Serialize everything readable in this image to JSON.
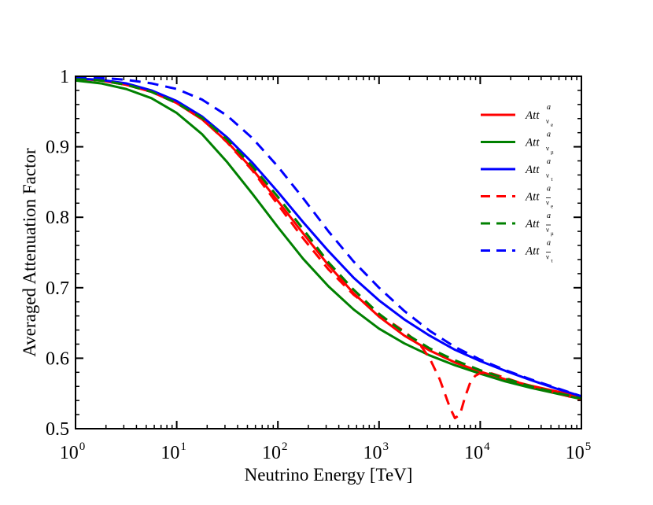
{
  "chart_data": {
    "type": "line",
    "title": "",
    "xlabel": "Neutrino Energy [TeV]",
    "ylabel": "Averaged Attenuation Factor",
    "xscale": "log",
    "xlim_log10": [
      0,
      5
    ],
    "ylim": [
      0.5,
      1.0
    ],
    "x_tick_base": "10",
    "x_tick_exponents": [
      "0",
      "1",
      "2",
      "3",
      "4",
      "5"
    ],
    "y_ticks": [
      0.5,
      0.6,
      0.7,
      0.8,
      0.9,
      1.0
    ],
    "y_tick_labels": [
      "0.5",
      "0.6",
      "0.7",
      "0.8",
      "0.9",
      "1"
    ],
    "legend_position": "top-right",
    "series": [
      {
        "name": "Att ν_e",
        "label_base": "Att",
        "label_sup": "a",
        "label_sub": "ν",
        "label_subsub": "e",
        "bar": false,
        "color": "#ff0000",
        "dashed": false,
        "log10_x": [
          0,
          0.25,
          0.5,
          0.75,
          1,
          1.25,
          1.5,
          1.75,
          2,
          2.25,
          2.5,
          2.75,
          3,
          3.25,
          3.5,
          3.75,
          4,
          4.25,
          4.5,
          4.75,
          5
        ],
        "y": [
          0.997,
          0.994,
          0.988,
          0.978,
          0.962,
          0.939,
          0.907,
          0.868,
          0.823,
          0.777,
          0.732,
          0.692,
          0.659,
          0.632,
          0.611,
          0.594,
          0.581,
          0.57,
          0.561,
          0.553,
          0.545
        ]
      },
      {
        "name": "Att ν_μ",
        "label_base": "Att",
        "label_sup": "a",
        "label_sub": "ν",
        "label_subsub": "μ",
        "bar": false,
        "color": "#008000",
        "dashed": false,
        "log10_x": [
          0,
          0.25,
          0.5,
          0.75,
          1,
          1.25,
          1.5,
          1.75,
          2,
          2.25,
          2.5,
          2.75,
          3,
          3.25,
          3.5,
          3.75,
          4,
          4.25,
          4.5,
          4.75,
          5
        ],
        "y": [
          0.994,
          0.99,
          0.982,
          0.969,
          0.948,
          0.918,
          0.878,
          0.833,
          0.786,
          0.741,
          0.702,
          0.669,
          0.642,
          0.621,
          0.604,
          0.59,
          0.578,
          0.567,
          0.558,
          0.55,
          0.542
        ]
      },
      {
        "name": "Att ν_τ",
        "label_base": "Att",
        "label_sup": "a",
        "label_sub": "ν",
        "label_subsub": "τ",
        "bar": false,
        "color": "#0000ff",
        "dashed": false,
        "log10_x": [
          0,
          0.25,
          0.5,
          0.75,
          1,
          1.25,
          1.5,
          1.75,
          2,
          2.25,
          2.5,
          2.75,
          3,
          3.25,
          3.5,
          3.75,
          4,
          4.25,
          4.5,
          4.75,
          5
        ],
        "y": [
          0.997,
          0.995,
          0.99,
          0.98,
          0.965,
          0.943,
          0.913,
          0.877,
          0.836,
          0.793,
          0.752,
          0.714,
          0.682,
          0.655,
          0.632,
          0.612,
          0.596,
          0.582,
          0.569,
          0.557,
          0.546
        ]
      },
      {
        "name": "Att ν̄_e",
        "label_base": "Att",
        "label_sup": "a",
        "label_sub": "ν",
        "label_subsub": "e",
        "bar": true,
        "color": "#ff0000",
        "dashed": true,
        "log10_x": [
          0,
          0.25,
          0.5,
          0.75,
          1,
          1.25,
          1.5,
          1.75,
          2,
          2.25,
          2.5,
          2.75,
          3,
          3.25,
          3.4,
          3.5,
          3.6,
          3.7,
          3.75,
          3.8,
          3.85,
          3.9,
          3.95,
          4,
          4.1,
          4.25,
          4.5,
          4.75,
          5
        ],
        "y": [
          0.997,
          0.994,
          0.988,
          0.978,
          0.962,
          0.94,
          0.906,
          0.866,
          0.818,
          0.77,
          0.726,
          0.69,
          0.662,
          0.638,
          0.62,
          0.6,
          0.57,
          0.53,
          0.515,
          0.52,
          0.545,
          0.565,
          0.575,
          0.579,
          0.579,
          0.572,
          0.56,
          0.551,
          0.541
        ]
      },
      {
        "name": "Att ν̄_μ",
        "label_base": "Att",
        "label_sup": "a",
        "label_sub": "ν",
        "label_subsub": "μ",
        "bar": true,
        "color": "#008000",
        "dashed": true,
        "log10_x": [
          0,
          0.25,
          0.5,
          0.75,
          1,
          1.25,
          1.5,
          1.75,
          2,
          2.25,
          2.5,
          2.75,
          3,
          3.25,
          3.5,
          3.75,
          4,
          4.25,
          4.5,
          4.75,
          5
        ],
        "y": [
          0.997,
          0.994,
          0.988,
          0.978,
          0.962,
          0.941,
          0.91,
          0.872,
          0.829,
          0.783,
          0.736,
          0.697,
          0.663,
          0.636,
          0.614,
          0.597,
          0.583,
          0.571,
          0.56,
          0.551,
          0.543
        ]
      },
      {
        "name": "Att ν̄_τ",
        "label_base": "Att",
        "label_sup": "a",
        "label_sub": "ν",
        "label_subsub": "τ",
        "bar": true,
        "color": "#0000ff",
        "dashed": true,
        "log10_x": [
          0,
          0.25,
          0.5,
          0.75,
          1,
          1.25,
          1.5,
          1.75,
          2,
          2.25,
          2.5,
          2.75,
          3,
          3.25,
          3.5,
          3.75,
          4,
          4.25,
          4.5,
          4.75,
          5
        ],
        "y": [
          0.999,
          0.998,
          0.995,
          0.99,
          0.982,
          0.967,
          0.944,
          0.912,
          0.872,
          0.827,
          0.78,
          0.737,
          0.7,
          0.667,
          0.639,
          0.616,
          0.598,
          0.583,
          0.57,
          0.558,
          0.546
        ]
      }
    ]
  }
}
